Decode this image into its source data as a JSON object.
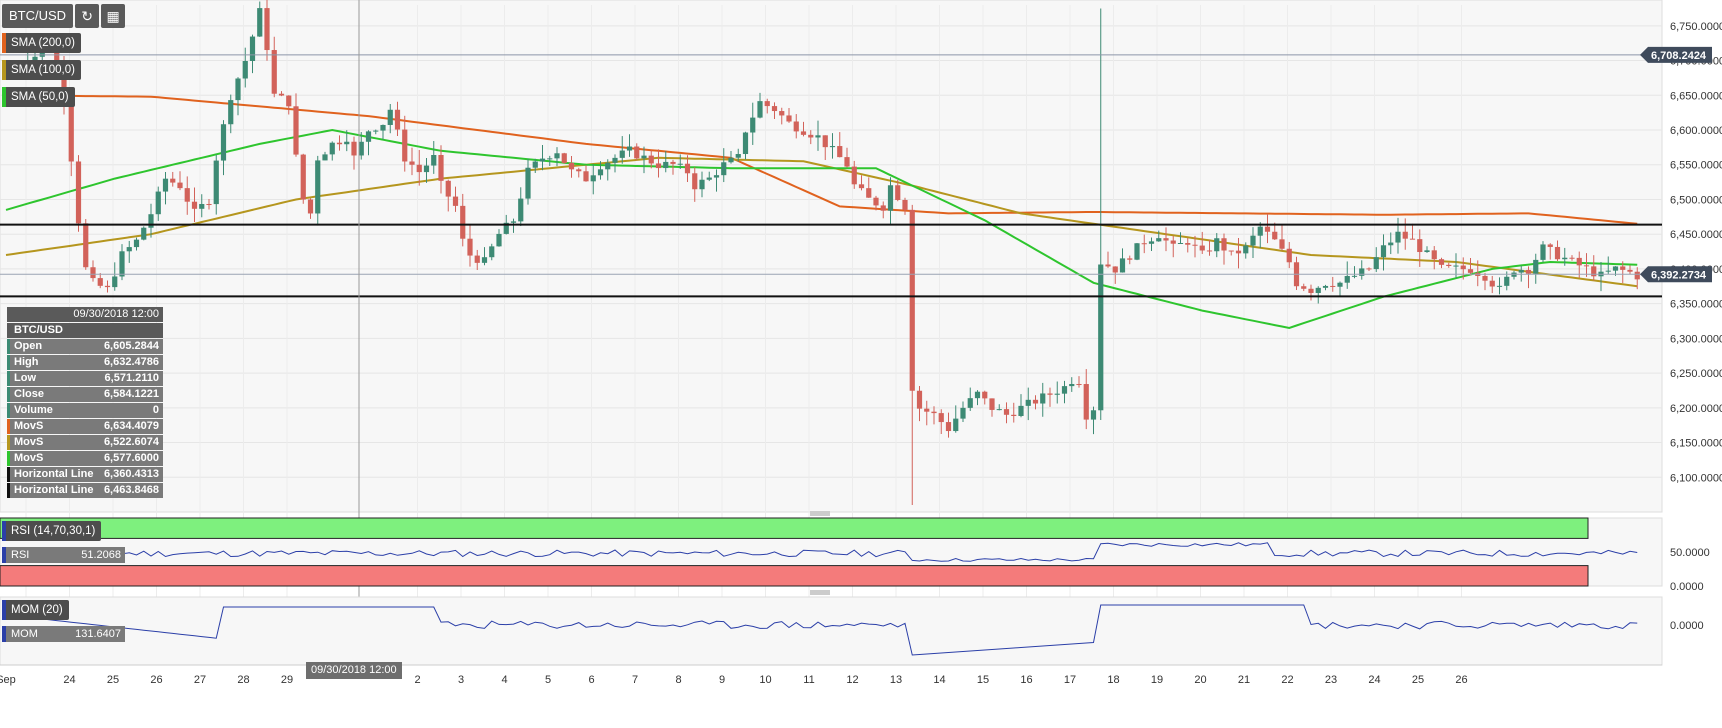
{
  "toolbar": {
    "symbol": "BTC/USD",
    "refresh_icon": "refresh-icon",
    "calendar_icon": "calendar-icon"
  },
  "indicators": [
    {
      "label": "SMA (200,0)",
      "color": "#e0621e"
    },
    {
      "label": "SMA (100,0)",
      "color": "#b5961e"
    },
    {
      "label": "SMA (50,0)",
      "color": "#2ec52e"
    }
  ],
  "info_panel": {
    "date": "09/30/2018 12:00",
    "symbol": "BTC/USD",
    "rows": [
      {
        "label": "Open",
        "value": "6,605.2844",
        "color": "#3d8a74"
      },
      {
        "label": "High",
        "value": "6,632.4786",
        "color": "#3d8a74"
      },
      {
        "label": "Low",
        "value": "6,571.2110",
        "color": "#3d8a74"
      },
      {
        "label": "Close",
        "value": "6,584.1221",
        "color": "#3d8a74"
      },
      {
        "label": "Volume",
        "value": "0",
        "color": "#3d8a74"
      },
      {
        "label": "MovS",
        "value": "6,634.4079",
        "color": "#e0621e"
      },
      {
        "label": "MovS",
        "value": "6,522.6074",
        "color": "#b5961e"
      },
      {
        "label": "MovS",
        "value": "6,577.6000",
        "color": "#2ec52e"
      },
      {
        "label": "Horizontal Line",
        "value": "6,360.4313",
        "color": "#111111"
      },
      {
        "label": "Horizontal Line",
        "value": "6,463.8468",
        "color": "#111111"
      }
    ]
  },
  "rsi_pane": {
    "title": "RSI (14,70,30,1)",
    "label": "RSI",
    "value": "51.2068"
  },
  "mom_pane": {
    "title": "MOM (20)",
    "label": "MOM",
    "value": "131.6407"
  },
  "crosshair_date": "09/30/2018 12:00",
  "chart_data": {
    "type": "candlestick",
    "symbol": "BTC/USD",
    "interval_hours": 4,
    "x_start_label": "Sep 23 2018 20:00",
    "price_ylim": [
      6050,
      6780
    ],
    "price_ticks": [
      6100,
      6150,
      6200,
      6250,
      6300,
      6350,
      6400,
      6450,
      6500,
      6550,
      6600,
      6650,
      6700,
      6750
    ],
    "price_tick_labels": [
      "6,100.0000",
      "6,150.0000",
      "6,200.0000",
      "6,250.0000",
      "6,300.0000",
      "6,350.0000",
      "6,400.0000",
      "6,450.0000",
      "6,500.0000",
      "6,550.0000",
      "6,600.0000",
      "6,650.0000",
      "6,700.0000",
      "6,750.0000"
    ],
    "x_ticks": [
      {
        "label": "Sep",
        "day": 23.0
      },
      {
        "label": "24",
        "day": 24
      },
      {
        "label": "25",
        "day": 25
      },
      {
        "label": "26",
        "day": 26
      },
      {
        "label": "27",
        "day": 27
      },
      {
        "label": "28",
        "day": 28
      },
      {
        "label": "29",
        "day": 29
      },
      {
        "label": "2",
        "day": 32
      },
      {
        "label": "3",
        "day": 33
      },
      {
        "label": "4",
        "day": 34
      },
      {
        "label": "5",
        "day": 35
      },
      {
        "label": "6",
        "day": 36
      },
      {
        "label": "7",
        "day": 37
      },
      {
        "label": "8",
        "day": 38
      },
      {
        "label": "9",
        "day": 39
      },
      {
        "label": "10",
        "day": 40
      },
      {
        "label": "11",
        "day": 41
      },
      {
        "label": "12",
        "day": 42
      },
      {
        "label": "13",
        "day": 43
      },
      {
        "label": "14",
        "day": 44
      },
      {
        "label": "15",
        "day": 45
      },
      {
        "label": "16",
        "day": 46
      },
      {
        "label": "17",
        "day": 47
      },
      {
        "label": "18",
        "day": 48
      },
      {
        "label": "19",
        "day": 49
      },
      {
        "label": "20",
        "day": 50
      },
      {
        "label": "21",
        "day": 51
      },
      {
        "label": "22",
        "day": 52
      },
      {
        "label": "23",
        "day": 53
      },
      {
        "label": "24",
        "day": 54
      },
      {
        "label": "25",
        "day": 55
      },
      {
        "label": "26",
        "day": 56
      }
    ],
    "last_price": {
      "value": 6392.2734,
      "label": "6,392.2734"
    },
    "marker_price": {
      "value": 6708.2424,
      "label": "6,708.2424"
    },
    "horizontal_lines": [
      6360.4313,
      6463.8468
    ],
    "candles_anchor": [
      [
        0,
        6680
      ],
      [
        3,
        6700
      ],
      [
        6,
        6720
      ],
      [
        8,
        6650
      ],
      [
        9,
        6560
      ],
      [
        10,
        6470
      ],
      [
        11,
        6400
      ],
      [
        12,
        6380
      ],
      [
        14,
        6370
      ],
      [
        16,
        6420
      ],
      [
        18,
        6440
      ],
      [
        20,
        6480
      ],
      [
        22,
        6530
      ],
      [
        24,
        6520
      ],
      [
        26,
        6480
      ],
      [
        28,
        6500
      ],
      [
        29,
        6560
      ],
      [
        31,
        6650
      ],
      [
        33,
        6700
      ],
      [
        35,
        6770
      ],
      [
        36,
        6720
      ],
      [
        37,
        6650
      ],
      [
        39,
        6640
      ],
      [
        40,
        6560
      ],
      [
        41,
        6500
      ],
      [
        42,
        6480
      ],
      [
        43,
        6560
      ],
      [
        45,
        6580
      ],
      [
        47,
        6590
      ],
      [
        48,
        6560
      ],
      [
        50,
        6600
      ],
      [
        52,
        6610
      ],
      [
        53,
        6630
      ],
      [
        55,
        6560
      ],
      [
        57,
        6540
      ],
      [
        59,
        6560
      ],
      [
        60,
        6520
      ],
      [
        62,
        6490
      ],
      [
        63,
        6440
      ],
      [
        64,
        6420
      ],
      [
        66,
        6410
      ],
      [
        68,
        6450
      ],
      [
        70,
        6470
      ],
      [
        72,
        6540
      ],
      [
        74,
        6560
      ],
      [
        76,
        6570
      ],
      [
        78,
        6540
      ],
      [
        80,
        6530
      ],
      [
        82,
        6550
      ],
      [
        84,
        6560
      ],
      [
        86,
        6570
      ],
      [
        88,
        6560
      ],
      [
        90,
        6550
      ],
      [
        92,
        6550
      ],
      [
        94,
        6540
      ],
      [
        95,
        6520
      ],
      [
        97,
        6530
      ],
      [
        99,
        6550
      ],
      [
        101,
        6560
      ],
      [
        102,
        6600
      ],
      [
        104,
        6640
      ],
      [
        106,
        6630
      ],
      [
        108,
        6610
      ],
      [
        110,
        6600
      ],
      [
        112,
        6590
      ],
      [
        114,
        6570
      ],
      [
        116,
        6550
      ],
      [
        117,
        6520
      ],
      [
        119,
        6500
      ],
      [
        121,
        6490
      ],
      [
        122,
        6520
      ],
      [
        124,
        6490
      ],
      [
        125,
        6230
      ],
      [
        126,
        6200
      ],
      [
        128,
        6190
      ],
      [
        130,
        6170
      ],
      [
        132,
        6200
      ],
      [
        134,
        6220
      ],
      [
        136,
        6200
      ],
      [
        138,
        6190
      ],
      [
        140,
        6200
      ],
      [
        142,
        6210
      ],
      [
        144,
        6220
      ],
      [
        146,
        6230
      ],
      [
        147,
        6240
      ],
      [
        148,
        6240
      ],
      [
        149,
        6190
      ],
      [
        150,
        6200
      ],
      [
        151,
        6410
      ],
      [
        153,
        6400
      ],
      [
        155,
        6420
      ],
      [
        157,
        6440
      ],
      [
        159,
        6450
      ],
      [
        161,
        6430
      ],
      [
        163,
        6440
      ],
      [
        165,
        6420
      ],
      [
        167,
        6440
      ],
      [
        169,
        6420
      ],
      [
        171,
        6430
      ],
      [
        173,
        6460
      ],
      [
        175,
        6440
      ],
      [
        177,
        6410
      ],
      [
        178,
        6380
      ],
      [
        180,
        6370
      ],
      [
        182,
        6380
      ],
      [
        184,
        6380
      ],
      [
        186,
        6390
      ],
      [
        188,
        6400
      ],
      [
        190,
        6430
      ],
      [
        192,
        6450
      ],
      [
        194,
        6440
      ],
      [
        196,
        6420
      ],
      [
        198,
        6400
      ],
      [
        200,
        6400
      ],
      [
        202,
        6400
      ],
      [
        204,
        6390
      ],
      [
        206,
        6370
      ],
      [
        208,
        6400
      ],
      [
        210,
        6400
      ],
      [
        212,
        6430
      ],
      [
        214,
        6420
      ],
      [
        216,
        6410
      ],
      [
        218,
        6400
      ],
      [
        220,
        6390
      ],
      [
        222,
        6400
      ],
      [
        224,
        6395
      ],
      [
        225,
        6390
      ]
    ],
    "sma200": [
      [
        0,
        6650
      ],
      [
        20,
        6648
      ],
      [
        50,
        6620
      ],
      [
        80,
        6580
      ],
      [
        100,
        6560
      ],
      [
        115,
        6490
      ],
      [
        130,
        6480
      ],
      [
        150,
        6482
      ],
      [
        170,
        6480
      ],
      [
        190,
        6478
      ],
      [
        210,
        6480
      ],
      [
        225,
        6465
      ]
    ],
    "sma100": [
      [
        0,
        6420
      ],
      [
        20,
        6450
      ],
      [
        40,
        6500
      ],
      [
        60,
        6530
      ],
      [
        90,
        6560
      ],
      [
        110,
        6555
      ],
      [
        125,
        6520
      ],
      [
        140,
        6480
      ],
      [
        160,
        6450
      ],
      [
        180,
        6420
      ],
      [
        200,
        6410
      ],
      [
        225,
        6375
      ]
    ],
    "sma50": [
      [
        0,
        6485
      ],
      [
        15,
        6530
      ],
      [
        35,
        6580
      ],
      [
        45,
        6600
      ],
      [
        60,
        6570
      ],
      [
        80,
        6550
      ],
      [
        100,
        6545
      ],
      [
        120,
        6545
      ],
      [
        135,
        6470
      ],
      [
        150,
        6380
      ],
      [
        165,
        6340
      ],
      [
        177,
        6315
      ],
      [
        190,
        6360
      ],
      [
        205,
        6400
      ],
      [
        213,
        6410
      ],
      [
        225,
        6406
      ]
    ],
    "rsi": {
      "ylim": [
        0,
        100
      ],
      "ticks": [
        0,
        50
      ],
      "tick_labels": [
        "0.0000",
        "50.0000"
      ],
      "overbought": 70,
      "oversold": 30,
      "value": 51.2068
    },
    "mom": {
      "ticks": [
        0
      ],
      "tick_labels": [
        "0.0000"
      ],
      "value": 131.6407
    }
  }
}
